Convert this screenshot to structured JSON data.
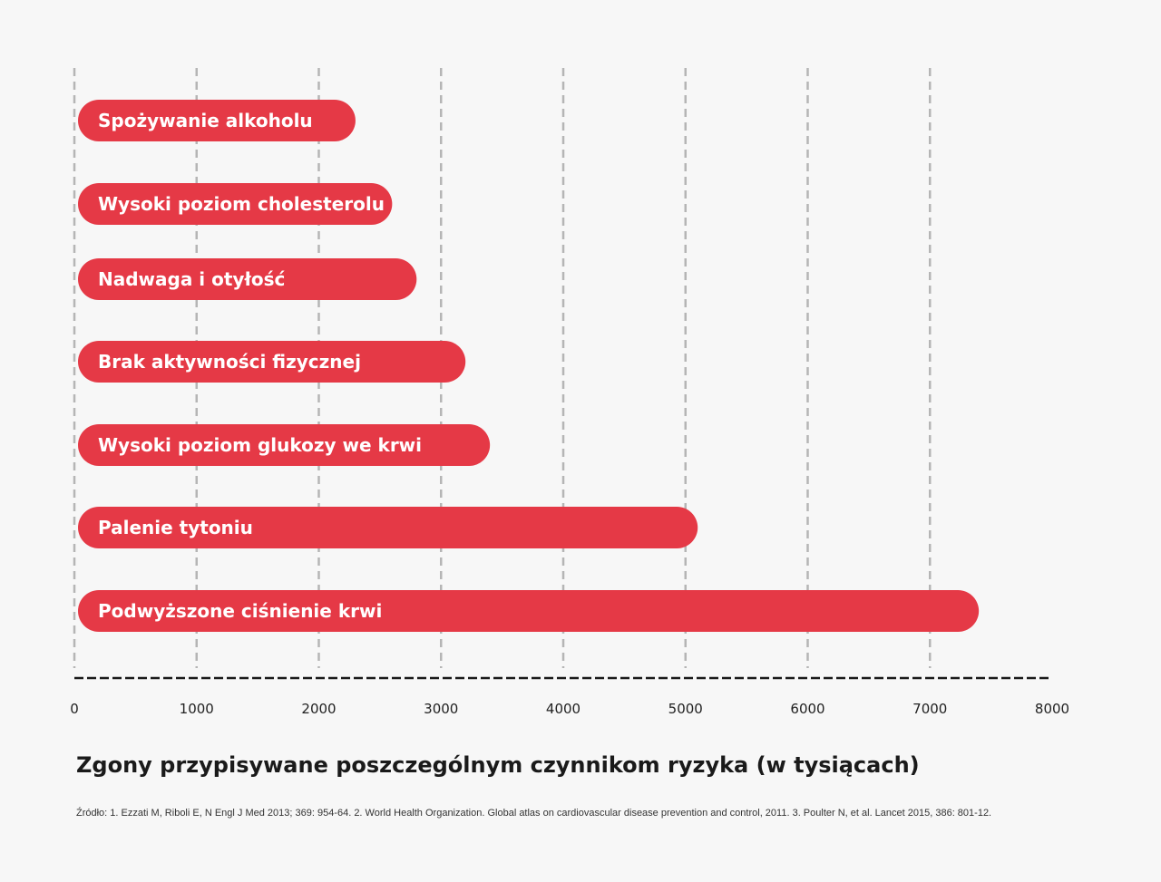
{
  "chart_data": {
    "type": "bar",
    "orientation": "horizontal",
    "title": "Zgony przypisywane poszczególnym czynnikom ryzyka (w tysiącach)",
    "categories": [
      "Spożywanie alkoholu",
      "Wysoki poziom cholesterolu",
      "Nadwaga i otyłość",
      "Brak aktywności fizycznej",
      "Wysoki poziom glukozy we krwi",
      "Palenie tytoniu",
      "Podwyższone ciśnienie krwi"
    ],
    "values": [
      2300,
      2600,
      2800,
      3200,
      3400,
      5100,
      7400
    ],
    "xlim": [
      0,
      8000
    ],
    "xticks": [
      "0",
      "1000",
      "2000",
      "3000",
      "4000",
      "5000",
      "6000",
      "7000",
      "8000"
    ],
    "grid": true,
    "bar_color": "#e53946",
    "grid_color": "#b5b5b5",
    "axis_color": "#1a1a1a"
  },
  "source": "Źródło: 1. Ezzati M, Riboli E, N Engl J Med 2013; 369: 954-64. 2. World Health Organization. Global atlas on cardiovascular disease prevention and control, 2011. 3. Poulter N, et al. Lancet 2015, 386: 801-12."
}
